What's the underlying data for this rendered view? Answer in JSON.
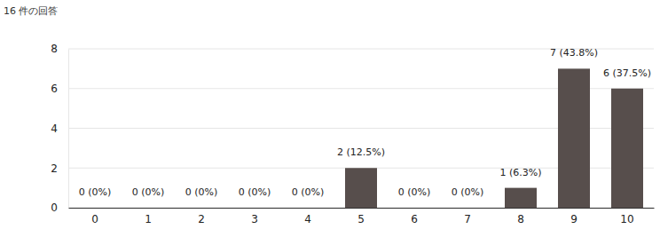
{
  "chart_data": {
    "type": "bar",
    "title": "16 件の回答",
    "categories": [
      "0",
      "1",
      "2",
      "3",
      "4",
      "5",
      "6",
      "7",
      "8",
      "9",
      "10"
    ],
    "values": [
      0,
      0,
      0,
      0,
      0,
      2,
      0,
      0,
      1,
      7,
      6
    ],
    "value_labels": [
      "0 (0%)",
      "0 (0%)",
      "0 (0%)",
      "0 (0%)",
      "0 (0%)",
      "2 (12.5%)",
      "0 (0%)",
      "0 (0%)",
      "1 (6.3%)",
      "7 (43.8%)",
      "6 (37.5%)"
    ],
    "color": "#574e4c",
    "ylim": [
      0,
      8
    ],
    "yticks": [
      0,
      2,
      4,
      6,
      8
    ],
    "grid": true,
    "data_labels": true
  }
}
